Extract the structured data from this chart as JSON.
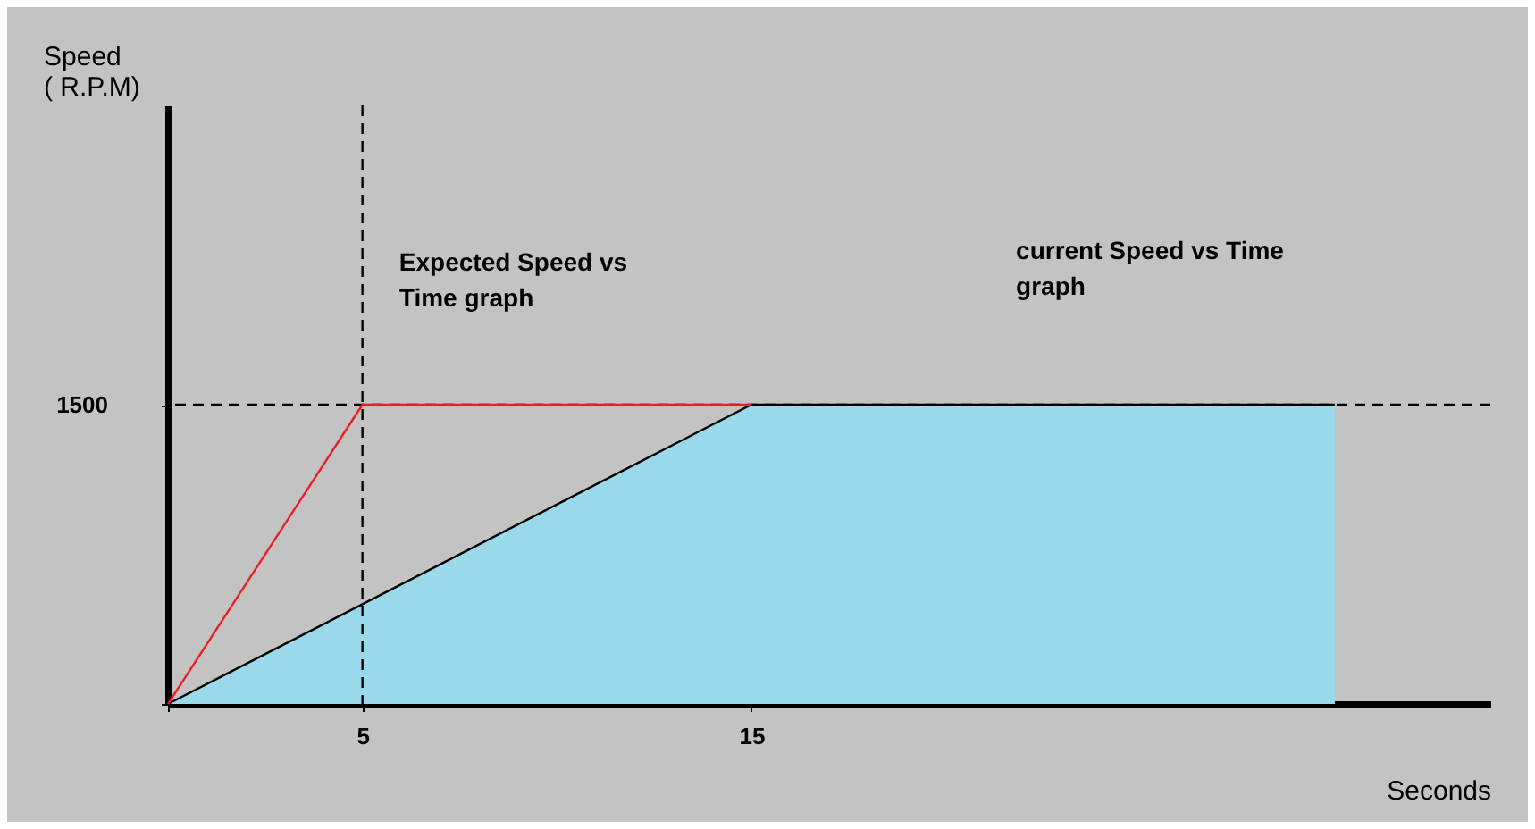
{
  "chart_data": {
    "type": "line",
    "xlabel": "Seconds",
    "ylabel": "Speed\n( R.P.M)",
    "annotations": [
      "Expected Speed vs\nTime graph",
      "current Speed vs Time\ngraph"
    ],
    "xlim": [
      0,
      34
    ],
    "ylim": [
      0,
      3000
    ],
    "xticks": [
      {
        "value": 0,
        "label": null
      },
      5,
      15
    ],
    "yticks": [
      {
        "value": 0,
        "label": null
      },
      1500
    ],
    "grid": false,
    "marker": "none",
    "line_style": "solid",
    "series": [
      {
        "type": "area",
        "color": "#99d9ea",
        "x": [
          0,
          15,
          30
        ],
        "values": [
          0,
          1500,
          1500
        ]
      },
      {
        "color": "#ed1c24",
        "x": [
          0,
          5,
          15
        ],
        "values": [
          0,
          1500,
          1500
        ]
      }
    ],
    "ref_lines": [
      {
        "axis": "y",
        "value": 1500,
        "label": null,
        "color": "#000000",
        "line_style": "dashed"
      },
      {
        "axis": "x",
        "value": 5,
        "label": null,
        "color": "#000000",
        "line_style": "dashed"
      }
    ]
  }
}
